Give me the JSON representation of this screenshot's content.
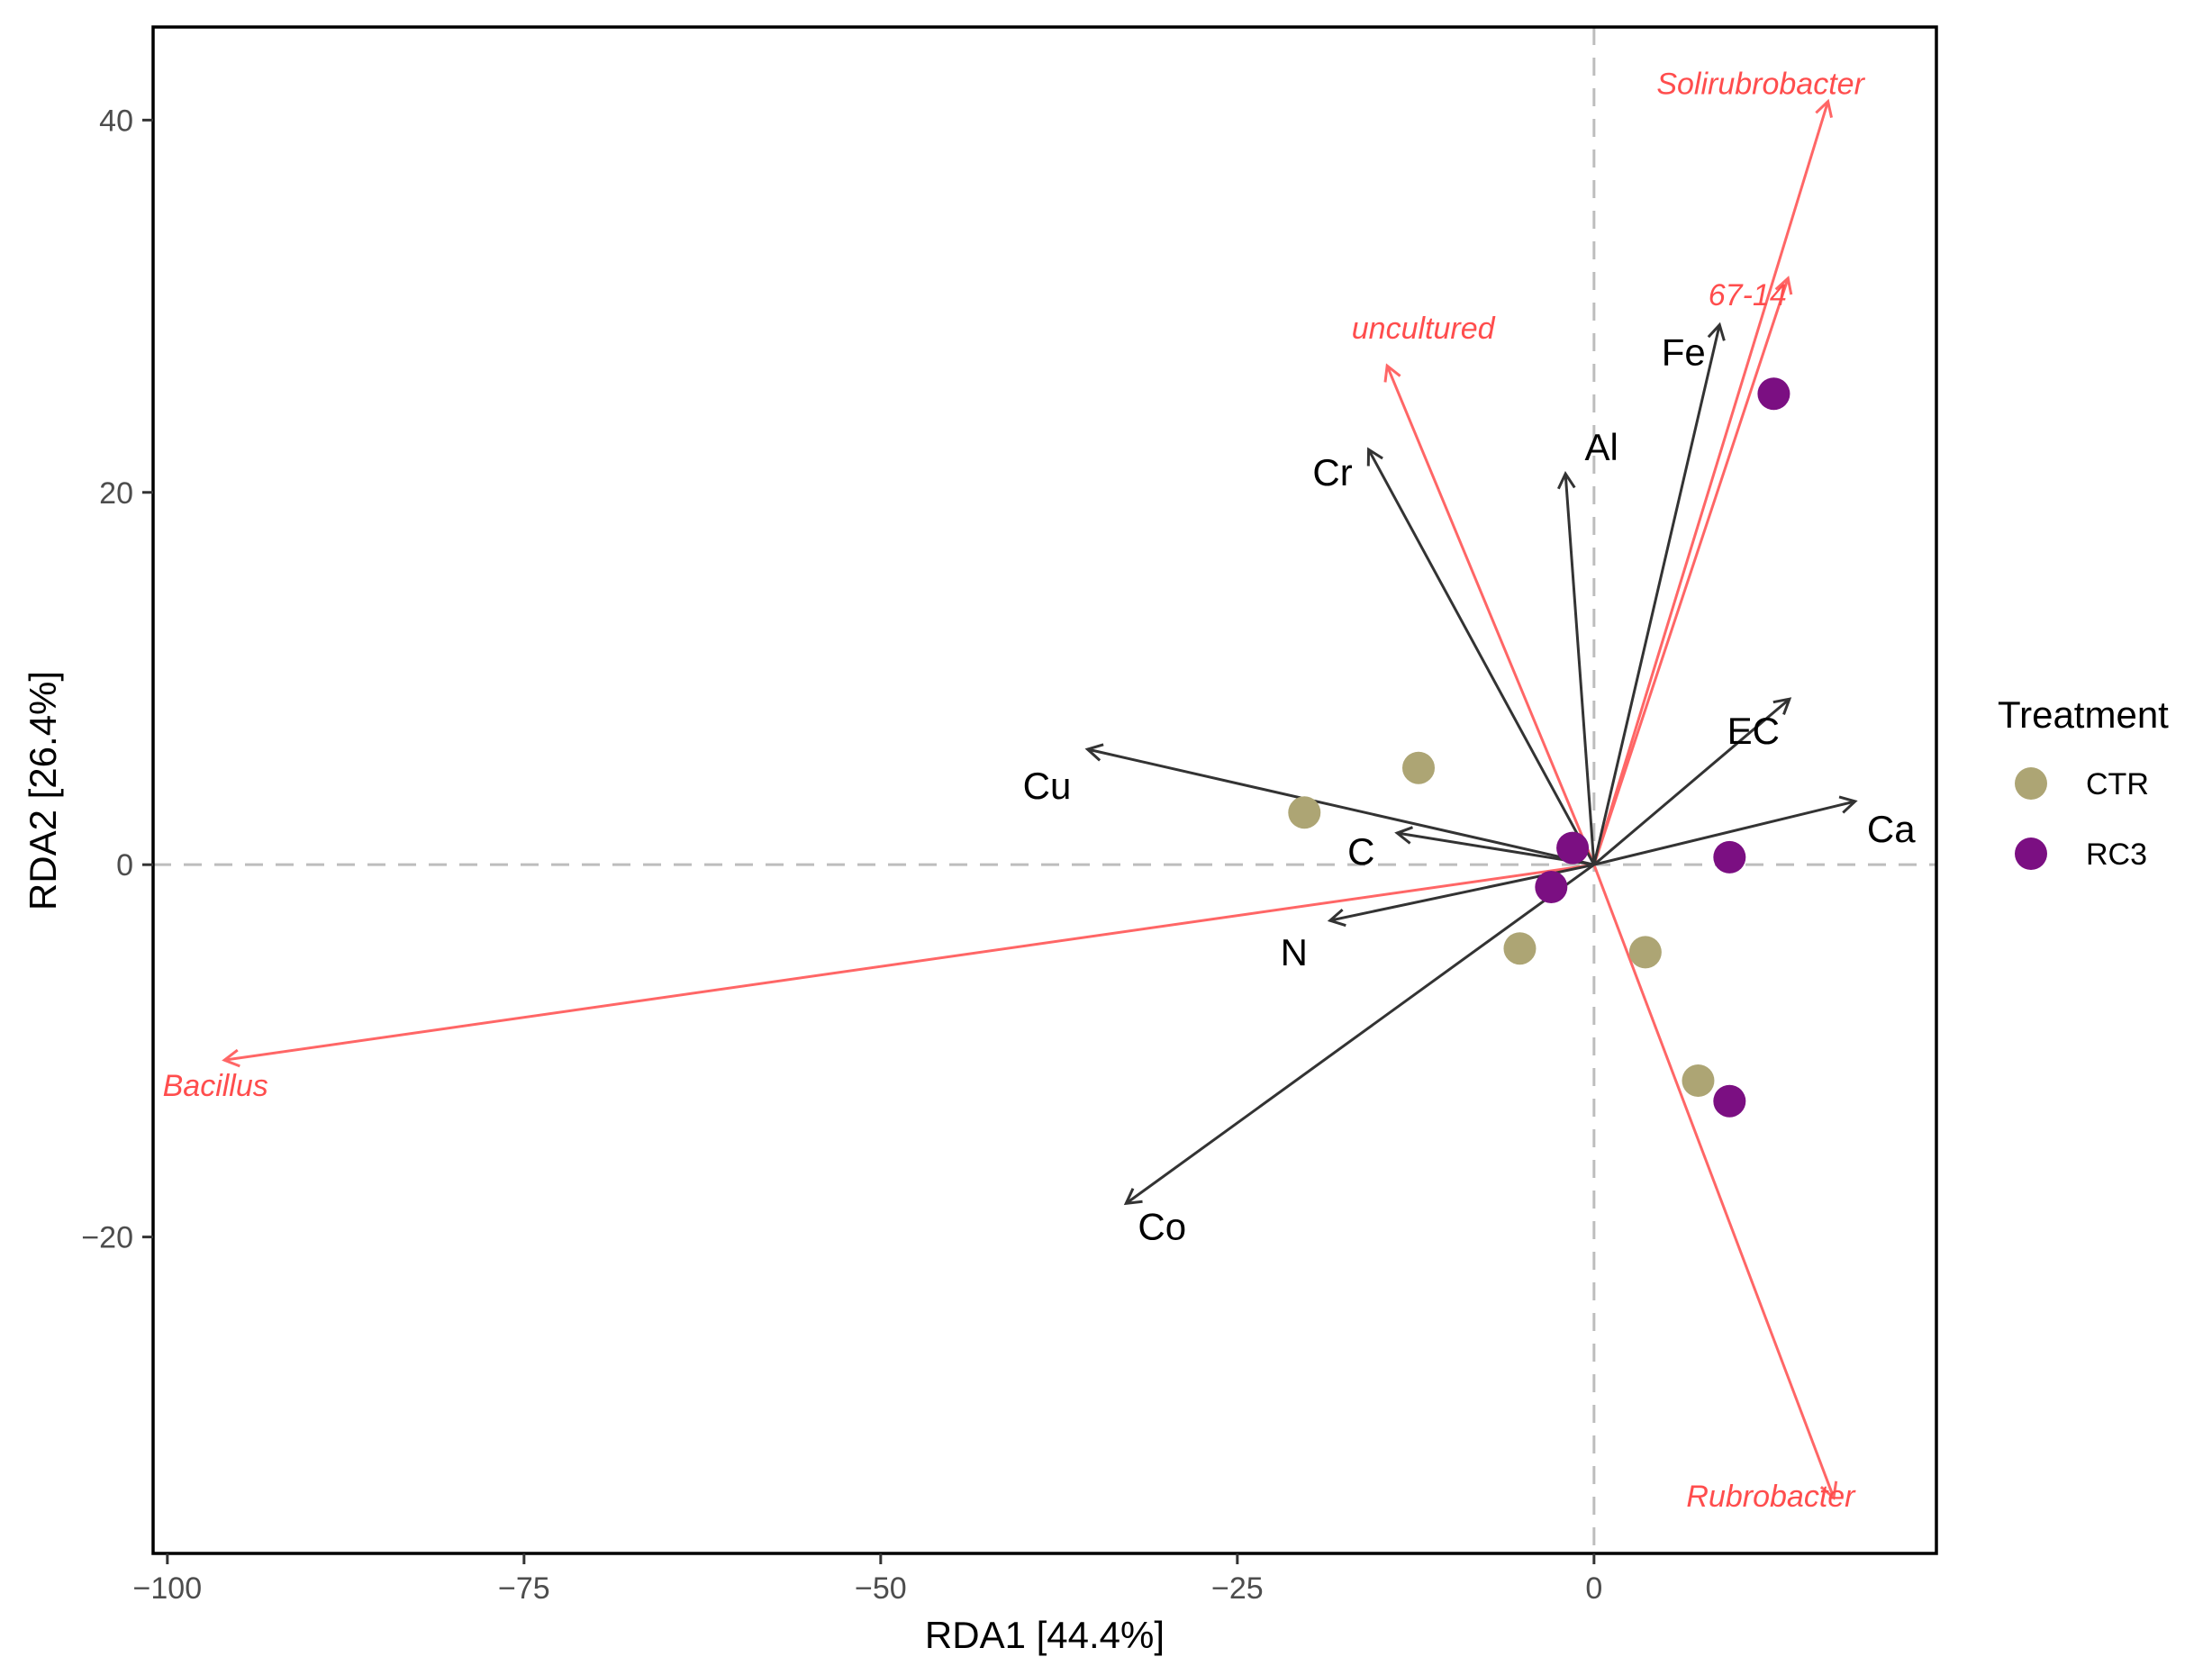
{
  "chart_data": {
    "type": "scatter",
    "subtype": "RDA triplot (biplot with sample points, environmental vectors and taxon vectors)",
    "xlabel": "RDA1 [44.4%]",
    "ylabel": "RDA2 [26.4%]",
    "xlim": [
      -101,
      24
    ],
    "ylim": [
      -37,
      45
    ],
    "x_ticks": [
      -100,
      -75,
      -50,
      -25,
      0
    ],
    "x_tick_labels": [
      "−100",
      "−75",
      "−50",
      "−25",
      "0"
    ],
    "y_ticks": [
      -20,
      0,
      20,
      40
    ],
    "y_tick_labels": [
      "−20",
      "0",
      "20",
      "40"
    ],
    "grid": false,
    "reference_lines": "dashed lines at x=0 and y=0",
    "legend": {
      "title": "Treatment",
      "placement": "right",
      "entries": [
        {
          "name": "CTR",
          "color": "#ada574"
        },
        {
          "name": "RC3",
          "color": "#7b0f82"
        }
      ]
    },
    "samples": [
      {
        "group": "CTR",
        "x": -12.3,
        "y": 5.2
      },
      {
        "group": "CTR",
        "x": -20.3,
        "y": 2.8
      },
      {
        "group": "CTR",
        "x": -5.2,
        "y": -4.5
      },
      {
        "group": "CTR",
        "x": 3.6,
        "y": -4.7
      },
      {
        "group": "CTR",
        "x": 7.3,
        "y": -11.6
      },
      {
        "group": "RC3",
        "x": -1.5,
        "y": 0.9
      },
      {
        "group": "RC3",
        "x": -3.0,
        "y": -1.2
      },
      {
        "group": "RC3",
        "x": 9.5,
        "y": 0.4
      },
      {
        "group": "RC3",
        "x": 9.5,
        "y": -12.7
      },
      {
        "group": "RC3",
        "x": 12.6,
        "y": 25.3
      }
    ],
    "env_vectors": [
      {
        "name": "Cr",
        "x": -15.8,
        "y": 22.3
      },
      {
        "name": "Al",
        "x": -2.0,
        "y": 21.0
      },
      {
        "name": "Fe",
        "x": 8.8,
        "y": 29.0
      },
      {
        "name": "EC",
        "x": 13.7,
        "y": 8.9
      },
      {
        "name": "Ca",
        "x": 18.3,
        "y": 3.4
      },
      {
        "name": "Cu",
        "x": -35.5,
        "y": 6.2
      },
      {
        "name": "C",
        "x": -13.8,
        "y": 1.7
      },
      {
        "name": "N",
        "x": -18.5,
        "y": -3.0
      },
      {
        "name": "Co",
        "x": -32.8,
        "y": -18.2
      }
    ],
    "taxon_vectors": [
      {
        "name": "Solirubrobacter",
        "x": 16.4,
        "y": 41.0
      },
      {
        "name": "67-14",
        "x": 13.6,
        "y": 31.5
      },
      {
        "name": "uncultured",
        "x": -14.5,
        "y": 26.8
      },
      {
        "name": "Bacillus",
        "x": -96.0,
        "y": -10.5
      },
      {
        "name": "Rubrobacter",
        "x": 16.8,
        "y": -34.0
      }
    ],
    "colors": {
      "env_vector": "#333333",
      "taxon_vector": "#ff6666",
      "taxon_text": "#ff4d4d",
      "CTR": "#ada574",
      "RC3": "#7b0f82"
    }
  }
}
